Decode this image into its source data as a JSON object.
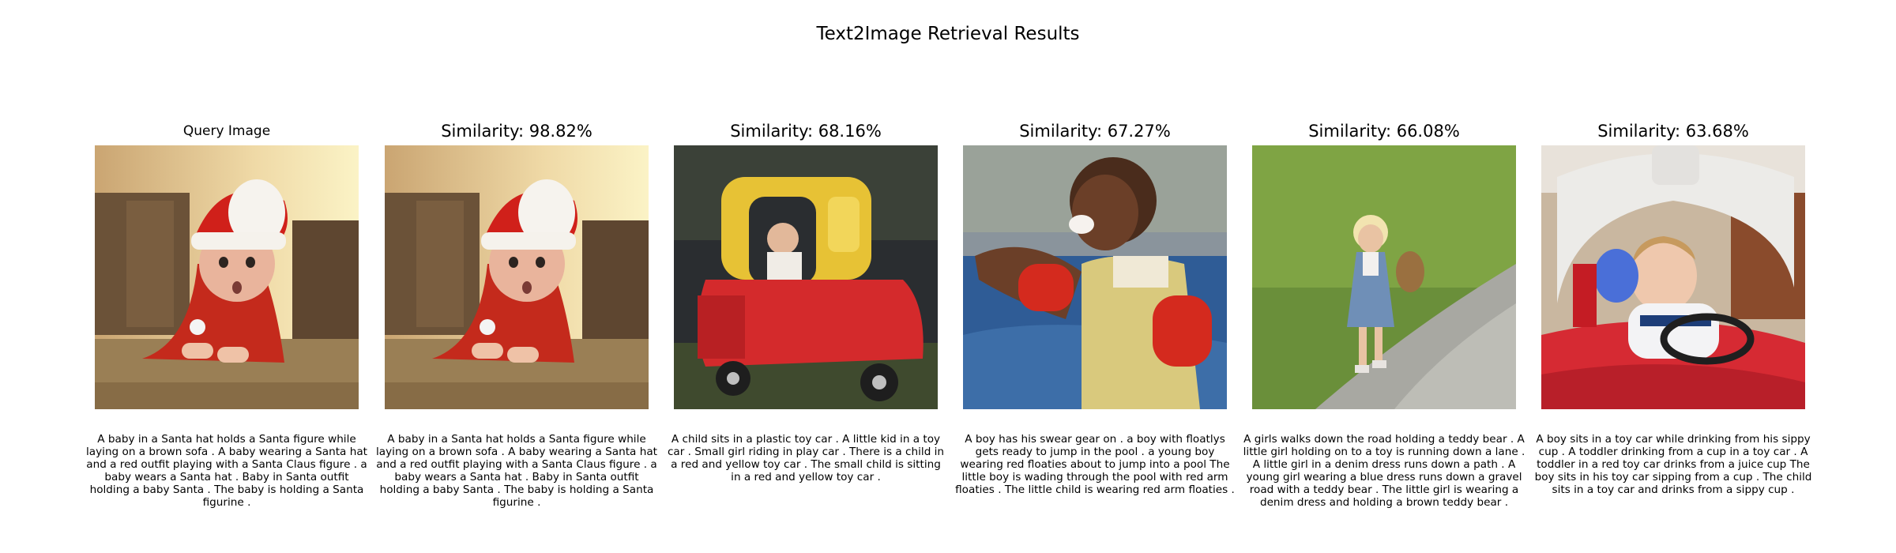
{
  "figure": {
    "title": "Text2Image Retrieval Results"
  },
  "panels": [
    {
      "title": "Query Image",
      "image": "baby-in-santa-hat-on-brown-sofa",
      "caption": "A baby in a Santa hat holds a Santa figure while laying on a brown sofa . A baby wearing a Santa hat and a red outfit playing with a Santa Claus figure . a baby wears a Santa hat . Baby in Santa outfit holding a baby Santa . The baby is holding a Santa figurine ."
    },
    {
      "title": "Similarity: 98.82%",
      "image": "baby-in-santa-hat-on-brown-sofa",
      "caption": "A baby in a Santa hat holds a Santa figure while laying on a brown sofa . A baby wearing a Santa hat and a red outfit playing with a Santa Claus figure . a baby wears a Santa hat . Baby in Santa outfit holding a baby Santa . The baby is holding a Santa figurine ."
    },
    {
      "title": "Similarity: 68.16%",
      "image": "child-in-red-yellow-toy-car",
      "caption": "A child sits in a plastic toy car . A little kid in a toy car . Small girl riding in play car . There is a child in a red and yellow toy car . The small child is sitting in a red and yellow toy car ."
    },
    {
      "title": "Similarity: 67.27%",
      "image": "boy-with-red-floaties-by-pool",
      "caption": "A boy has his swear gear on . a boy with floatlys gets ready to jump in the pool . a young boy wearing red floaties about to jump into a pool The little boy is wading through the pool with red arm floaties . The little child is wearing red arm floaties ."
    },
    {
      "title": "Similarity: 66.08%",
      "image": "girl-with-teddy-bear-on-gravel-road",
      "caption": "A girls walks down the road holding a teddy bear . A little girl holding on to a toy is running down a lane . A little girl in a denim dress runs down a path . A young girl wearing a blue dress runs down a gravel road with a teddy bear . The little girl is wearing a denim dress and holding a brown teddy bear ."
    },
    {
      "title": "Similarity: 63.68%",
      "image": "toddler-in-toy-car-with-sippy-cup",
      "caption": "A boy sits in a toy car while drinking from his sippy cup . A toddler drinking from a cup in a toy car . A toddler in a red toy car drinks from a juice cup The boy sits in his toy car sipping from a cup . The child sits in a toy car and drinks from a sippy cup ."
    }
  ]
}
